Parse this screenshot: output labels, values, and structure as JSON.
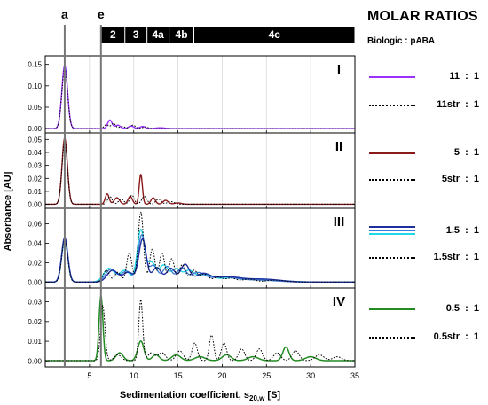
{
  "legend": {
    "title": "MOLAR RATIOS",
    "subtitle": "Biologic : pABA",
    "entries": [
      {
        "label": "11  :  1",
        "color": "#9b30ff",
        "style": "solid"
      },
      {
        "label": "11str  :  1",
        "color": "#000000",
        "style": "dotted"
      },
      {
        "label": "5  :  1",
        "color": "#8b1a1a",
        "style": "solid"
      },
      {
        "label": "5str  :  1",
        "color": "#000000",
        "style": "dotted"
      },
      {
        "label": "1.5  :  1",
        "colors": [
          "#1f2fa0",
          "#3a7bd5",
          "#22d8e8"
        ],
        "style": "solid-multi"
      },
      {
        "label": "1.5str  :  1",
        "color": "#000000",
        "style": "dotted"
      },
      {
        "label": "0.5  :  1",
        "color": "#228b22",
        "style": "solid"
      },
      {
        "label": "0.5str  :  1",
        "color": "#000000",
        "style": "dotted"
      }
    ]
  },
  "chart_data": {
    "type": "line",
    "xlabel": "Sedimentation coefficient, s20,w [S]",
    "xlabel_main": "Sedimentation coefficient, s",
    "xlabel_sub": "20,w",
    "xlabel_unit": " [S]",
    "ylabel": "Absorbance [AU]",
    "xlim": [
      0,
      35
    ],
    "xticks": [
      5,
      10,
      15,
      20,
      25,
      30,
      35
    ],
    "grid": true,
    "vertical_markers": [
      {
        "label": "a",
        "x": 2.2
      },
      {
        "label": "e",
        "x": 6.3
      }
    ],
    "regions": [
      {
        "label": "2",
        "x0": 6.3,
        "x1": 9.0
      },
      {
        "label": "3",
        "x0": 9.0,
        "x1": 11.5
      },
      {
        "label": "4a",
        "x0": 11.5,
        "x1": 14.0
      },
      {
        "label": "4b",
        "x0": 14.0,
        "x1": 16.8
      },
      {
        "label": "4c",
        "x0": 16.8,
        "x1": 35
      }
    ],
    "panels": [
      {
        "label": "I",
        "ylim": [
          -0.01,
          0.17
        ],
        "yticks": [
          0.0,
          0.05,
          0.1,
          0.15
        ],
        "yticklabels": [
          "0.00",
          "0.05",
          "0.10",
          "0.15"
        ],
        "series": [
          {
            "name": "11 : 1",
            "color": "#9b30ff",
            "dash": false,
            "width": 1.4,
            "peaks": [
              [
                2.2,
                0.148,
                0.32
              ],
              [
                7.3,
                0.02,
                0.25
              ],
              [
                8.2,
                0.008,
                0.3
              ],
              [
                9.7,
                0.006,
                0.3
              ],
              [
                11.0,
                0.005,
                0.3
              ],
              [
                13.0,
                0.002,
                0.5
              ]
            ]
          },
          {
            "name": "11str : 1",
            "color": "#000000",
            "dash": true,
            "width": 1.0,
            "peaks": [
              [
                2.2,
                0.14,
                0.32
              ],
              [
                6.9,
                0.009,
                0.25
              ],
              [
                7.7,
                0.012,
                0.25
              ],
              [
                8.7,
                0.005,
                0.3
              ],
              [
                9.9,
                0.008,
                0.3
              ],
              [
                11.3,
                0.004,
                0.3
              ]
            ]
          }
        ]
      },
      {
        "label": "II",
        "ylim": [
          -0.003,
          0.055
        ],
        "yticks": [
          0.0,
          0.01,
          0.02,
          0.03,
          0.04,
          0.05
        ],
        "yticklabels": [
          "0.00",
          "0.01",
          "0.02",
          "0.03",
          "0.04",
          "0.05"
        ],
        "series": [
          {
            "name": "5 : 1",
            "color": "#8b1a1a",
            "dash": false,
            "width": 1.4,
            "peaks": [
              [
                2.2,
                0.051,
                0.3
              ],
              [
                7.0,
                0.008,
                0.22
              ],
              [
                8.1,
                0.005,
                0.3
              ],
              [
                9.6,
                0.006,
                0.25
              ],
              [
                10.8,
                0.023,
                0.18
              ],
              [
                12.2,
                0.005,
                0.25
              ],
              [
                13.6,
                0.003,
                0.3
              ],
              [
                15.0,
                0.001,
                0.4
              ]
            ]
          },
          {
            "name": "5str : 1",
            "color": "#000000",
            "dash": true,
            "width": 1.0,
            "peaks": [
              [
                2.2,
                0.048,
                0.3
              ],
              [
                7.3,
                0.006,
                0.25
              ],
              [
                8.6,
                0.004,
                0.3
              ],
              [
                9.8,
                0.007,
                0.25
              ],
              [
                11.2,
                0.006,
                0.3
              ],
              [
                12.8,
                0.004,
                0.3
              ],
              [
                14.2,
                0.002,
                0.4
              ]
            ]
          }
        ]
      },
      {
        "label": "III",
        "ylim": [
          -0.006,
          0.076
        ],
        "yticks": [
          0.0,
          0.02,
          0.04,
          0.06
        ],
        "yticklabels": [
          "0.00",
          "0.02",
          "0.04",
          "0.06"
        ],
        "series": [
          {
            "name": "1.5 : 1 (c)",
            "color": "#22d8e8",
            "dash": false,
            "width": 1.4,
            "peaks": [
              [
                2.2,
                0.042,
                0.35
              ],
              [
                7.2,
                0.014,
                0.6
              ],
              [
                9.0,
                0.012,
                0.6
              ],
              [
                10.8,
                0.053,
                0.4
              ],
              [
                12.0,
                0.02,
                0.5
              ],
              [
                13.4,
                0.017,
                0.5
              ],
              [
                14.8,
                0.013,
                0.5
              ],
              [
                16.2,
                0.011,
                0.6
              ],
              [
                18.0,
                0.007,
                0.9
              ],
              [
                21.0,
                0.004,
                1.5
              ],
              [
                25.0,
                0.002,
                2.0
              ]
            ]
          },
          {
            "name": "1.5 : 1 (b)",
            "color": "#3a7bd5",
            "dash": false,
            "width": 1.3,
            "peaks": [
              [
                2.2,
                0.044,
                0.35
              ],
              [
                7.4,
                0.013,
                0.6
              ],
              [
                9.2,
                0.011,
                0.6
              ],
              [
                10.9,
                0.048,
                0.4
              ],
              [
                12.2,
                0.017,
                0.5
              ],
              [
                13.8,
                0.016,
                0.5
              ],
              [
                15.4,
                0.014,
                0.5
              ],
              [
                17.2,
                0.009,
                0.8
              ],
              [
                20.0,
                0.005,
                1.5
              ],
              [
                24.0,
                0.002,
                2.0
              ]
            ]
          },
          {
            "name": "1.5 : 1 (a)",
            "color": "#1f2fa0",
            "dash": false,
            "width": 1.4,
            "peaks": [
              [
                2.2,
                0.046,
                0.35
              ],
              [
                7.6,
                0.012,
                0.6
              ],
              [
                9.4,
                0.01,
                0.6
              ],
              [
                11.0,
                0.044,
                0.42
              ],
              [
                12.6,
                0.015,
                0.5
              ],
              [
                14.2,
                0.014,
                0.5
              ],
              [
                15.8,
                0.018,
                0.5
              ],
              [
                17.8,
                0.008,
                0.8
              ],
              [
                20.5,
                0.005,
                1.5
              ],
              [
                24.5,
                0.003,
                2.0
              ]
            ]
          },
          {
            "name": "1.5str : 1",
            "color": "#000000",
            "dash": true,
            "width": 1.0,
            "peaks": [
              [
                2.2,
                0.043,
                0.33
              ],
              [
                6.9,
                0.012,
                0.35
              ],
              [
                8.2,
                0.01,
                0.35
              ],
              [
                9.5,
                0.03,
                0.3
              ],
              [
                10.8,
                0.072,
                0.3
              ],
              [
                12.1,
                0.034,
                0.3
              ],
              [
                13.2,
                0.03,
                0.3
              ],
              [
                14.3,
                0.024,
                0.3
              ],
              [
                15.5,
                0.018,
                0.35
              ],
              [
                16.8,
                0.012,
                0.4
              ],
              [
                18.0,
                0.008,
                0.45
              ],
              [
                19.5,
                0.005,
                0.5
              ],
              [
                21.0,
                0.004,
                0.6
              ],
              [
                23.0,
                0.003,
                0.7
              ],
              [
                26.0,
                0.002,
                1.0
              ]
            ]
          }
        ]
      },
      {
        "label": "IV",
        "ylim": [
          -0.003,
          0.037
        ],
        "yticks": [
          0.0,
          0.01,
          0.02,
          0.03
        ],
        "yticklabels": [
          "0.00",
          "0.01",
          "0.02",
          "0.03"
        ],
        "series": [
          {
            "name": "0.5 : 1",
            "color": "#228b22",
            "dash": false,
            "width": 1.5,
            "peaks": [
              [
                6.3,
                0.033,
                0.22
              ],
              [
                8.4,
                0.004,
                0.4
              ],
              [
                10.8,
                0.01,
                0.35
              ],
              [
                12.5,
                0.003,
                0.4
              ],
              [
                14.8,
                0.003,
                0.5
              ],
              [
                17.5,
                0.002,
                0.6
              ],
              [
                20.5,
                0.003,
                0.5
              ],
              [
                23.5,
                0.002,
                0.6
              ],
              [
                27.2,
                0.007,
                0.35
              ],
              [
                30.0,
                0.002,
                0.6
              ]
            ]
          },
          {
            "name": "0.5str : 1",
            "color": "#000000",
            "dash": true,
            "width": 1.0,
            "peaks": [
              [
                6.5,
                0.028,
                0.25
              ],
              [
                8.2,
                0.003,
                0.4
              ],
              [
                10.8,
                0.031,
                0.22
              ],
              [
                12.0,
                0.004,
                0.4
              ],
              [
                13.2,
                0.004,
                0.4
              ],
              [
                15.2,
                0.005,
                0.4
              ],
              [
                16.9,
                0.009,
                0.3
              ],
              [
                18.8,
                0.013,
                0.25
              ],
              [
                20.2,
                0.009,
                0.3
              ],
              [
                22.2,
                0.006,
                0.35
              ],
              [
                24.2,
                0.006,
                0.35
              ],
              [
                26.2,
                0.004,
                0.4
              ],
              [
                28.3,
                0.005,
                0.4
              ],
              [
                31.0,
                0.003,
                0.5
              ],
              [
                33.0,
                0.002,
                0.5
              ]
            ]
          }
        ]
      }
    ]
  }
}
